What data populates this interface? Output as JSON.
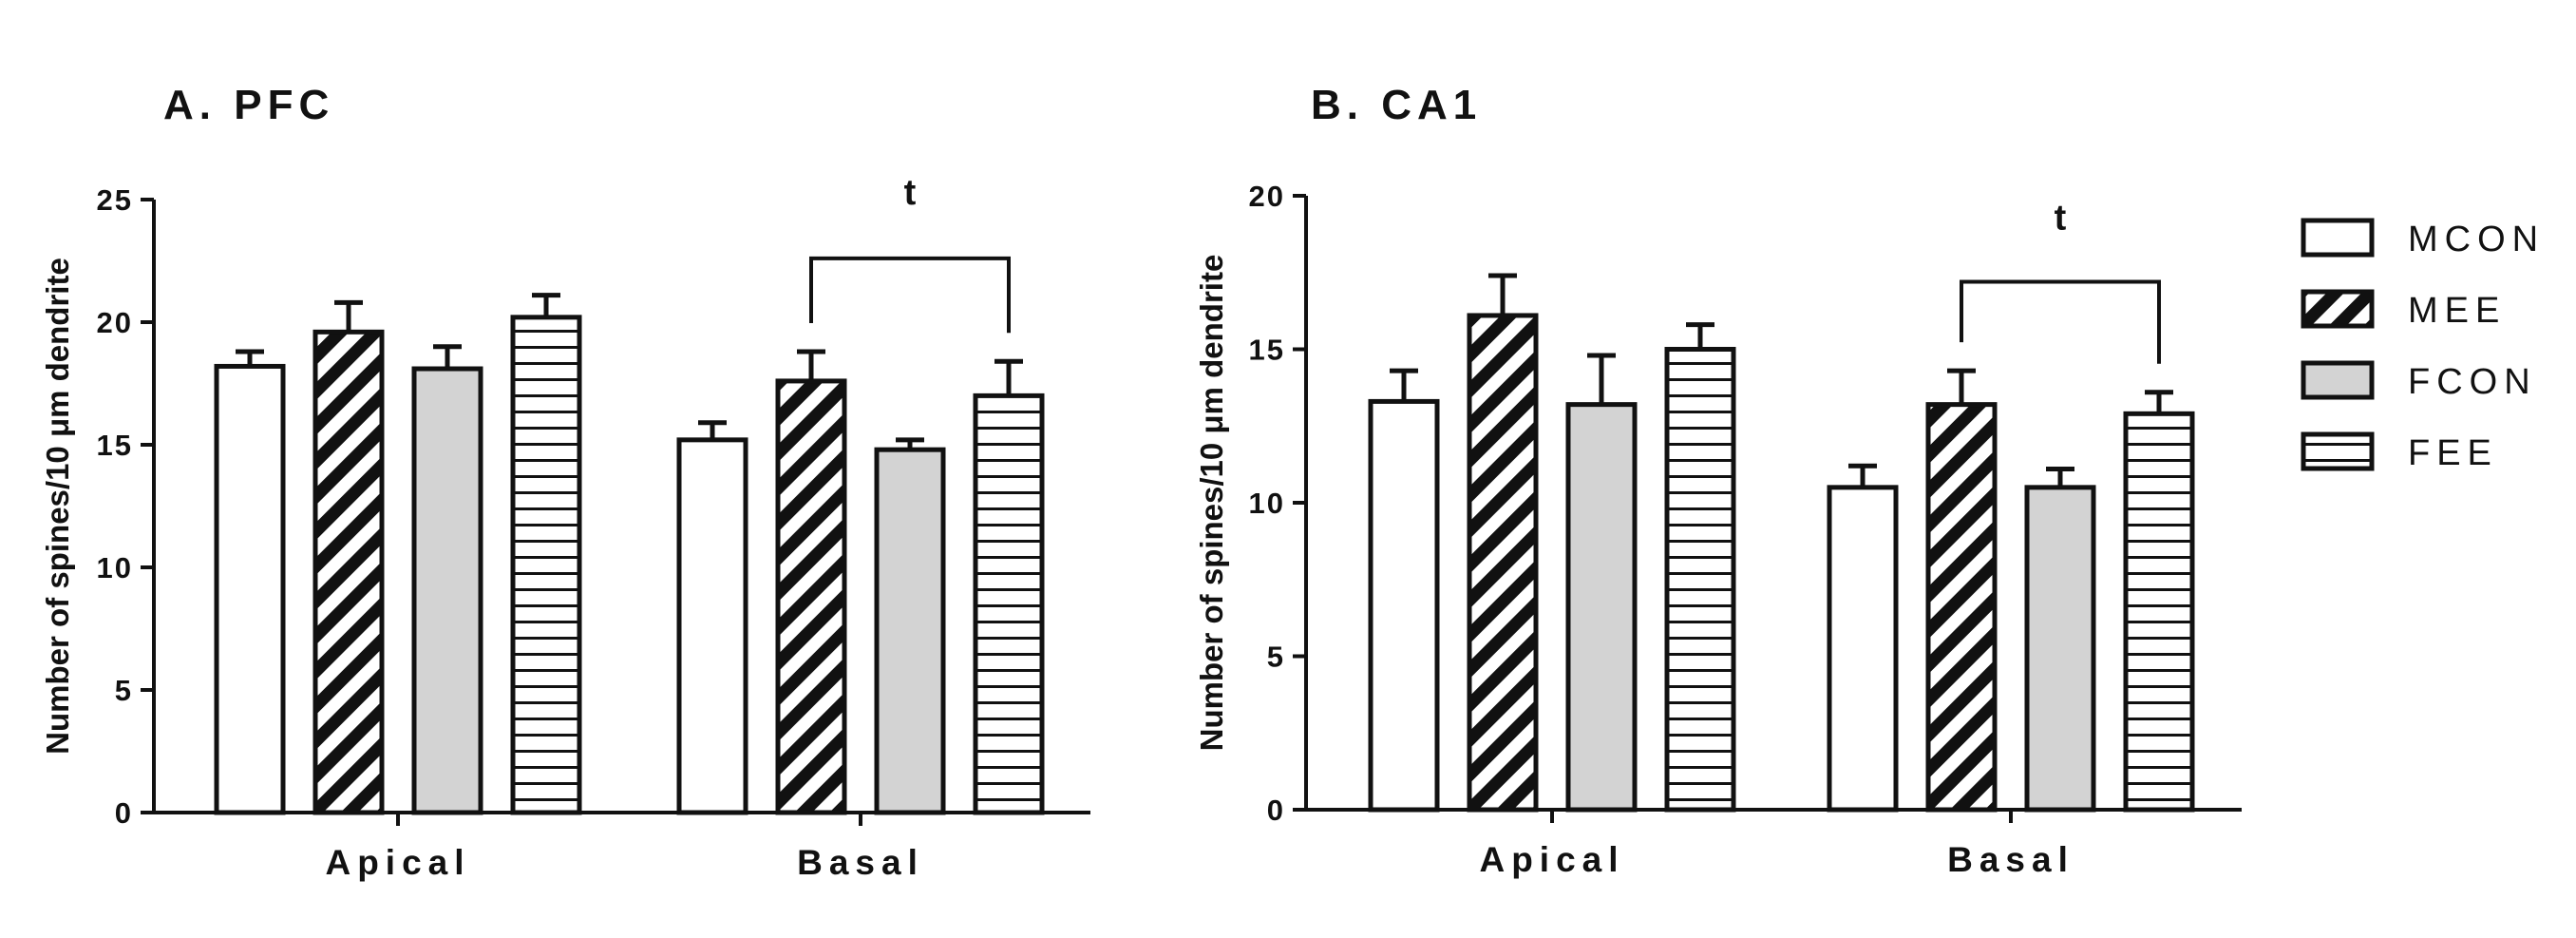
{
  "legend": [
    {
      "label": "MCON",
      "pattern": "white"
    },
    {
      "label": "MEE",
      "pattern": "diagonal"
    },
    {
      "label": "FCON",
      "pattern": "gray"
    },
    {
      "label": "FEE",
      "pattern": "horizontal"
    }
  ],
  "colors": {
    "stroke": "#111111",
    "gray_fill": "#d3d3d3",
    "background": "#ffffff"
  },
  "chart_data": [
    {
      "type": "bar",
      "title": "A. PFC",
      "ylabel": "Number of spines/10 μm dendrite",
      "ylim": [
        0,
        25
      ],
      "yticks": [
        0,
        5,
        10,
        15,
        20,
        25
      ],
      "categories": [
        "Apical",
        "Basal"
      ],
      "series": [
        {
          "name": "MCON",
          "values": [
            18.2,
            15.2
          ],
          "errors": [
            0.6,
            0.7
          ]
        },
        {
          "name": "MEE",
          "values": [
            19.6,
            17.6
          ],
          "errors": [
            1.2,
            1.2
          ]
        },
        {
          "name": "FCON",
          "values": [
            18.1,
            14.8
          ],
          "errors": [
            0.9,
            0.4
          ]
        },
        {
          "name": "FEE",
          "values": [
            20.2,
            17.0
          ],
          "errors": [
            0.9,
            1.4
          ]
        }
      ],
      "annotation": {
        "text": "t",
        "category": "Basal",
        "from": "MEE",
        "to": "FEE",
        "bracket_y": 22.6,
        "label_y": 24.8
      },
      "grid": false
    },
    {
      "type": "bar",
      "title": "B.  CA1",
      "ylabel": "Number of spines/10 μm dendrite",
      "ylim": [
        0,
        20
      ],
      "yticks": [
        0,
        5,
        10,
        15,
        20
      ],
      "categories": [
        "Apical",
        "Basal"
      ],
      "series": [
        {
          "name": "MCON",
          "values": [
            13.3,
            10.5
          ],
          "errors": [
            1.0,
            0.7
          ]
        },
        {
          "name": "MEE",
          "values": [
            16.1,
            13.2
          ],
          "errors": [
            1.3,
            1.1
          ]
        },
        {
          "name": "FCON",
          "values": [
            13.2,
            10.5
          ],
          "errors": [
            1.6,
            0.6
          ]
        },
        {
          "name": "FEE",
          "values": [
            15.0,
            12.9
          ],
          "errors": [
            0.8,
            0.7
          ]
        }
      ],
      "annotation": {
        "text": "t",
        "category": "Basal",
        "from": "MEE",
        "to": "FEE",
        "bracket_y": 17.2,
        "label_y": 18.9
      },
      "grid": false
    }
  ]
}
